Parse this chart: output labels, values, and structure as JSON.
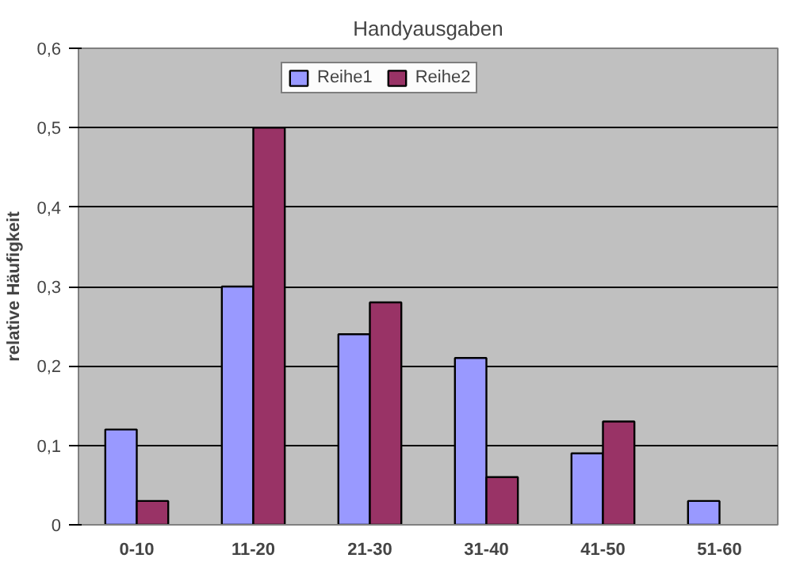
{
  "chart_data": {
    "type": "bar",
    "title": "Handyausgaben",
    "ylabel": "relative Häufigkeit",
    "categories": [
      "0-10",
      "11-20",
      "21-30",
      "31-40",
      "41-50",
      "51-60"
    ],
    "series": [
      {
        "name": "Reihe1",
        "color": "#9999ff",
        "values": [
          0.12,
          0.3,
          0.24,
          0.21,
          0.09,
          0.03
        ]
      },
      {
        "name": "Reihe2",
        "color": "#993366",
        "values": [
          0.03,
          0.5,
          0.28,
          0.06,
          0.13,
          null
        ]
      }
    ],
    "ylim": [
      0,
      0.6
    ],
    "yticks": [
      0,
      {
        "value": 0.1,
        "label": "0,1"
      },
      {
        "value": 0.2,
        "label": "0,2"
      },
      {
        "value": 0.3,
        "label": "0,3"
      },
      {
        "value": 0.4,
        "label": "0,4"
      },
      {
        "value": 0.5,
        "label": "0,5"
      },
      {
        "value": 0.6,
        "label": "0,6"
      }
    ],
    "grid": "y",
    "legend": "top"
  }
}
